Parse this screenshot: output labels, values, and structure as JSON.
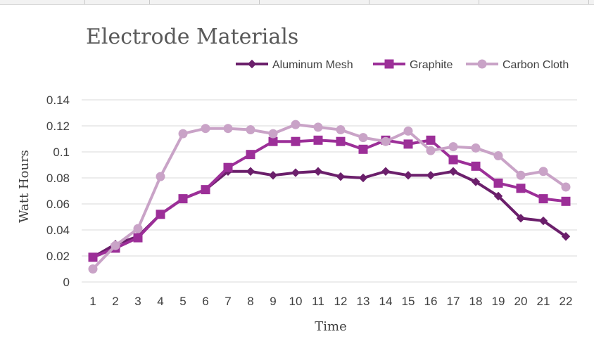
{
  "chart_data": {
    "type": "line",
    "title": "Electrode Materials",
    "xlabel": "Time",
    "ylabel": "Watt Hours",
    "x": [
      1,
      2,
      3,
      4,
      5,
      6,
      7,
      8,
      9,
      10,
      11,
      12,
      13,
      14,
      15,
      16,
      17,
      18,
      19,
      20,
      21,
      22
    ],
    "ylim": [
      0,
      0.14
    ],
    "yticks": [
      "0",
      "0.02",
      "0.04",
      "0.06",
      "0.08",
      "0.1",
      "0.12",
      "0.14"
    ],
    "ytick_values": [
      0,
      0.02,
      0.04,
      0.06,
      0.08,
      0.1,
      0.12,
      0.14
    ],
    "grid": true,
    "legend_position": "top-right",
    "series": [
      {
        "name": "Aluminum Mesh",
        "color": "#6b1f6b",
        "marker": "diamond",
        "values": [
          0.019,
          0.029,
          0.035,
          0.052,
          0.064,
          0.071,
          0.085,
          0.085,
          0.082,
          0.084,
          0.085,
          0.081,
          0.08,
          0.085,
          0.082,
          0.082,
          0.085,
          0.077,
          0.066,
          0.049,
          0.047,
          0.035
        ]
      },
      {
        "name": "Graphite",
        "color": "#9c2f98",
        "marker": "square",
        "values": [
          0.019,
          0.026,
          0.034,
          0.052,
          0.064,
          0.071,
          0.088,
          0.098,
          0.108,
          0.108,
          0.109,
          0.108,
          0.102,
          0.109,
          0.106,
          0.109,
          0.094,
          0.089,
          0.076,
          0.072,
          0.064,
          0.062
        ]
      },
      {
        "name": "Carbon Cloth",
        "color": "#c9a3c7",
        "marker": "circle",
        "values": [
          0.01,
          0.028,
          0.041,
          0.081,
          0.114,
          0.118,
          0.118,
          0.117,
          0.114,
          0.121,
          0.119,
          0.117,
          0.111,
          0.108,
          0.116,
          0.101,
          0.104,
          0.103,
          0.097,
          0.082,
          0.085,
          0.073
        ]
      }
    ]
  }
}
